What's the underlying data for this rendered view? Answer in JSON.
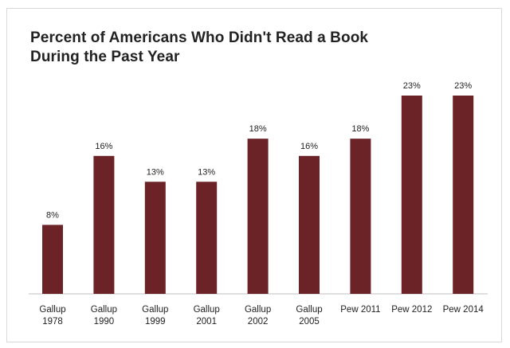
{
  "chart_data": {
    "type": "bar",
    "title": "Percent of Americans Who Didn't Read a Book",
    "subtitle": "During the Past Year",
    "categories": [
      [
        "Gallup",
        "1978"
      ],
      [
        "Gallup",
        "1990"
      ],
      [
        "Gallup",
        "1999"
      ],
      [
        "Gallup",
        "2001"
      ],
      [
        "Gallup",
        "2002"
      ],
      [
        "Gallup",
        "2005"
      ],
      [
        "Pew 2011"
      ],
      [
        "Pew 2012"
      ],
      [
        "Pew 2014"
      ]
    ],
    "values": [
      8,
      16,
      13,
      13,
      18,
      16,
      18,
      23,
      23
    ],
    "value_labels": [
      "8%",
      "16%",
      "13%",
      "13%",
      "18%",
      "16%",
      "18%",
      "23%",
      "23%"
    ],
    "ylim": [
      0,
      23
    ],
    "grid": false,
    "legend": "none",
    "colors": {
      "bar": "#6b2327",
      "axis": "#bfbfbf",
      "text": "#222222"
    }
  }
}
